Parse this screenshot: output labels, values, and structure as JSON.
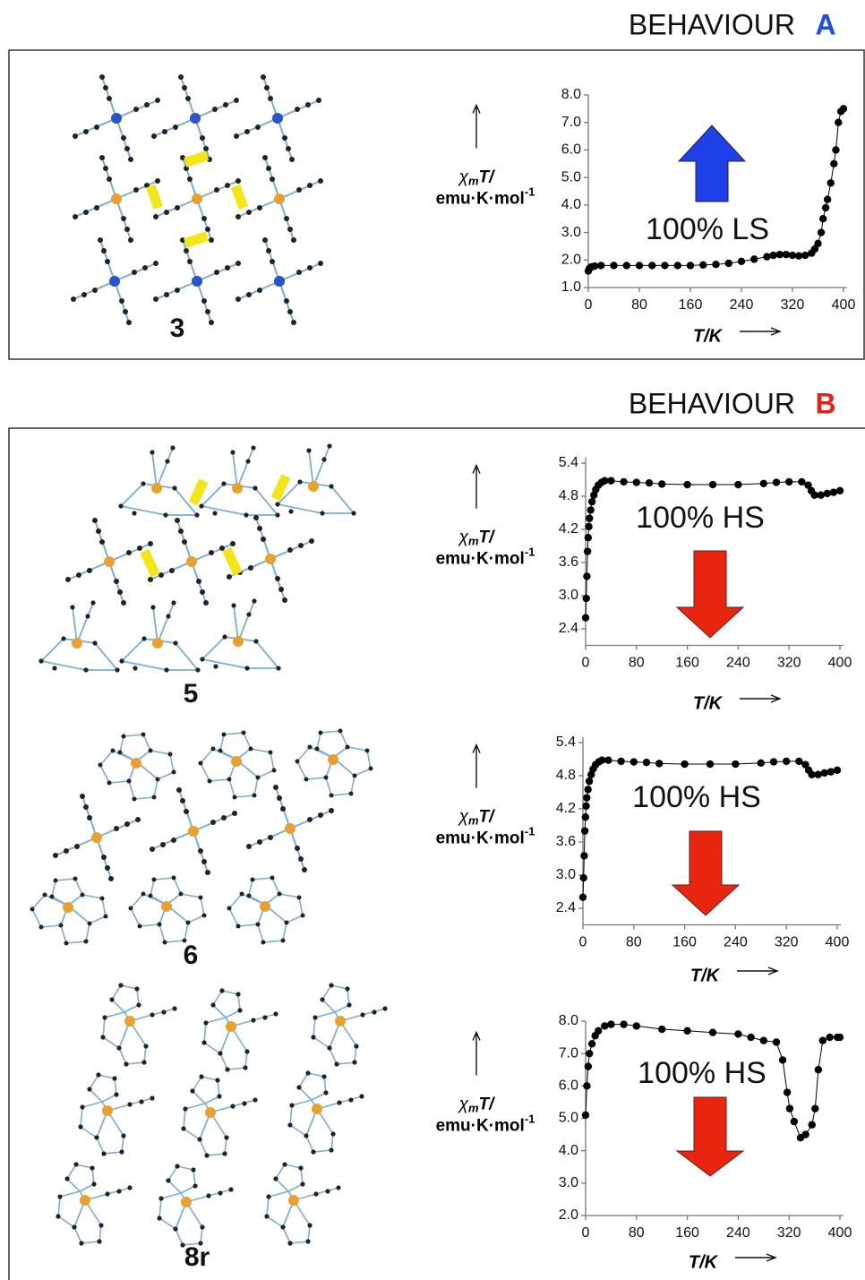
{
  "headings": [
    {
      "text": "BEHAVIOUR",
      "letter": "A"
    },
    {
      "text": "BEHAVIOUR",
      "letter": "B"
    }
  ],
  "chart_data": [
    {
      "type": "line",
      "compound": "3",
      "annotation": "100% LS",
      "color": "#000000",
      "xlabel": "T/K",
      "ylabel": {
        "symbol": "χ",
        "subscript": "m",
        "rest": "T/",
        "units": "emu·K·mol",
        "exponent": "-1"
      },
      "x": [
        0,
        2,
        5,
        10,
        20,
        40,
        60,
        80,
        100,
        120,
        140,
        160,
        180,
        200,
        220,
        240,
        260,
        280,
        290,
        300,
        310,
        320,
        330,
        340,
        350,
        355,
        360,
        365,
        368,
        372,
        375,
        380,
        385,
        388,
        392,
        396,
        400
      ],
      "values": [
        1.6,
        1.7,
        1.75,
        1.78,
        1.8,
        1.8,
        1.8,
        1.8,
        1.8,
        1.8,
        1.8,
        1.8,
        1.82,
        1.84,
        1.88,
        1.95,
        2.03,
        2.12,
        2.17,
        2.2,
        2.2,
        2.17,
        2.15,
        2.17,
        2.25,
        2.4,
        2.6,
        3.0,
        3.5,
        3.9,
        4.2,
        4.8,
        5.5,
        6.0,
        7.0,
        7.4,
        7.5
      ],
      "xlim": [
        0,
        400
      ],
      "xticks": [
        0,
        80,
        160,
        240,
        320,
        400
      ],
      "ylim": [
        1,
        8
      ],
      "yticks": [
        {
          "value": 1,
          "label": "1.0"
        },
        {
          "value": 2,
          "label": "2.0"
        },
        {
          "value": 3,
          "label": "3.0"
        },
        {
          "value": 4,
          "label": "4.0"
        },
        {
          "value": 5,
          "label": "5.0"
        },
        {
          "value": 6,
          "label": "6.0"
        },
        {
          "value": 7,
          "label": "7.0"
        },
        {
          "value": 8,
          "label": "8.0"
        }
      ]
    },
    {
      "type": "line",
      "compound": "5",
      "annotation": "100% HS",
      "color": "#000000",
      "xlabel": "T/K",
      "ylabel": {
        "symbol": "χ",
        "subscript": "m",
        "rest": "T/",
        "units": "emu·K·mol",
        "exponent": "-1"
      },
      "x": [
        0,
        1,
        2,
        3,
        4,
        5,
        6,
        8,
        10,
        13,
        16,
        20,
        25,
        30,
        40,
        60,
        80,
        100,
        120,
        160,
        200,
        240,
        280,
        300,
        320,
        340,
        350,
        355,
        360,
        370,
        380,
        390,
        400
      ],
      "values": [
        2.6,
        2.95,
        3.35,
        3.8,
        4.05,
        4.25,
        4.4,
        4.55,
        4.7,
        4.82,
        4.92,
        5.0,
        5.05,
        5.08,
        5.08,
        5.06,
        5.05,
        5.04,
        5.02,
        5.01,
        5.01,
        5.01,
        5.03,
        5.05,
        5.06,
        5.06,
        5.0,
        4.9,
        4.82,
        4.82,
        4.85,
        4.87,
        4.9
      ],
      "xlim": [
        0,
        400
      ],
      "xticks": [
        0,
        80,
        160,
        240,
        320,
        400
      ],
      "ylim": [
        2.1,
        5.5
      ],
      "yticks": [
        2.4,
        {
          "value": 3,
          "label": "3.0"
        },
        3.6,
        4.2,
        4.8,
        5.4
      ]
    },
    {
      "type": "line",
      "compound": "6",
      "annotation": "100% HS",
      "color": "#000000",
      "xlabel": "T/K",
      "ylabel": {
        "symbol": "χ",
        "subscript": "m",
        "rest": "T/",
        "units": "emu·K·mol",
        "exponent": "-1"
      },
      "x": [
        0,
        1,
        2,
        3,
        4,
        5,
        6,
        8,
        10,
        13,
        16,
        20,
        25,
        30,
        40,
        60,
        80,
        100,
        120,
        160,
        200,
        240,
        280,
        300,
        320,
        340,
        350,
        355,
        360,
        370,
        380,
        390,
        400
      ],
      "values": [
        2.6,
        2.95,
        3.35,
        3.8,
        4.05,
        4.25,
        4.4,
        4.55,
        4.7,
        4.82,
        4.92,
        5.0,
        5.05,
        5.08,
        5.08,
        5.06,
        5.05,
        5.04,
        5.02,
        5.01,
        5.01,
        5.01,
        5.03,
        5.05,
        5.06,
        5.06,
        5.0,
        4.9,
        4.82,
        4.82,
        4.85,
        4.87,
        4.9
      ],
      "xlim": [
        0,
        400
      ],
      "xticks": [
        0,
        80,
        160,
        240,
        320,
        400
      ],
      "ylim": [
        2.1,
        5.5
      ],
      "yticks": [
        2.4,
        {
          "value": 3,
          "label": "3.0"
        },
        3.6,
        4.2,
        4.8,
        5.4
      ]
    },
    {
      "type": "line",
      "compound": "8r",
      "annotation": "100% HS",
      "color": "#000000",
      "xlabel": "T/K",
      "ylabel": {
        "symbol": "χ",
        "subscript": "m",
        "rest": "T/",
        "units": "emu·K·mol",
        "exponent": "-1"
      },
      "x": [
        0,
        2,
        4,
        6,
        10,
        15,
        20,
        30,
        40,
        60,
        80,
        120,
        160,
        200,
        240,
        260,
        280,
        300,
        310,
        317,
        321,
        328,
        338,
        346,
        356,
        361,
        366,
        373,
        384,
        396,
        400
      ],
      "values": [
        5.1,
        6.0,
        6.6,
        7.0,
        7.3,
        7.55,
        7.7,
        7.85,
        7.9,
        7.9,
        7.85,
        7.75,
        7.7,
        7.65,
        7.6,
        7.5,
        7.4,
        7.35,
        6.8,
        5.8,
        5.3,
        4.9,
        4.4,
        4.5,
        4.8,
        5.3,
        6.5,
        7.4,
        7.5,
        7.5,
        7.5
      ],
      "xlim": [
        0,
        400
      ],
      "xticks": [
        0,
        80,
        160,
        240,
        320,
        400
      ],
      "ylim": [
        2,
        8
      ],
      "yticks": [
        {
          "value": 2,
          "label": "2.0"
        },
        {
          "value": 3,
          "label": "3.0"
        },
        {
          "value": 4,
          "label": "4.0"
        },
        {
          "value": 5,
          "label": "5.0"
        },
        {
          "value": 6,
          "label": "6.0"
        },
        {
          "value": 7,
          "label": "7.0"
        },
        {
          "value": 8,
          "label": "8.0"
        }
      ]
    }
  ]
}
